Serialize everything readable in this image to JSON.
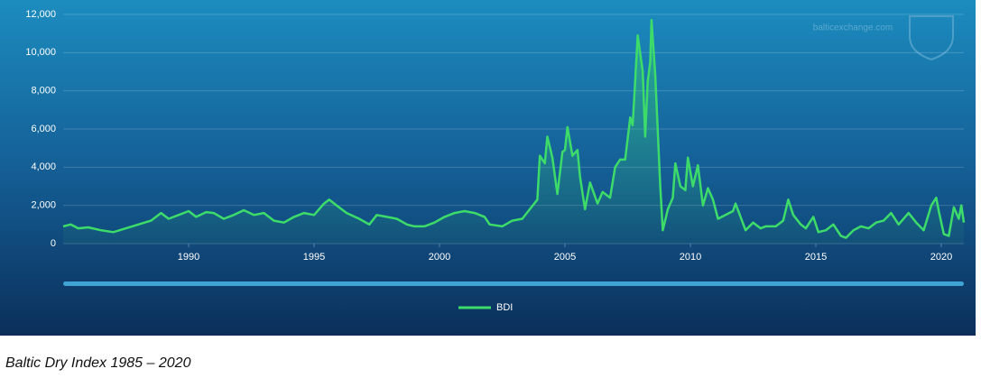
{
  "chart_data": {
    "type": "line",
    "watermark": "balticexchange.com",
    "x": [
      1985.0,
      1985.3,
      1985.6,
      1986.0,
      1986.5,
      1987.0,
      1987.5,
      1988.0,
      1988.5,
      1988.9,
      1989.2,
      1989.6,
      1990.0,
      1990.3,
      1990.7,
      1991.0,
      1991.4,
      1991.8,
      1992.2,
      1992.6,
      1993.0,
      1993.4,
      1993.8,
      1994.2,
      1994.6,
      1995.0,
      1995.4,
      1995.6,
      1995.9,
      1996.3,
      1996.8,
      1997.2,
      1997.5,
      1997.9,
      1998.3,
      1998.7,
      1999.0,
      1999.4,
      1999.8,
      2000.2,
      2000.6,
      2001.0,
      2001.4,
      2001.8,
      2002.0,
      2002.5,
      2002.9,
      2003.3,
      2003.6,
      2003.9,
      2004.0,
      2004.2,
      2004.3,
      2004.5,
      2004.7,
      2004.9,
      2005.0,
      2005.1,
      2005.3,
      2005.5,
      2005.6,
      2005.8,
      2006.0,
      2006.3,
      2006.5,
      2006.8,
      2007.0,
      2007.2,
      2007.4,
      2007.6,
      2007.7,
      2007.8,
      2007.9,
      2008.1,
      2008.2,
      2008.3,
      2008.4,
      2008.45,
      2008.6,
      2008.8,
      2008.9,
      2009.1,
      2009.3,
      2009.4,
      2009.6,
      2009.8,
      2009.9,
      2010.1,
      2010.3,
      2010.5,
      2010.7,
      2010.9,
      2011.1,
      2011.4,
      2011.7,
      2011.8,
      2012.0,
      2012.2,
      2012.5,
      2012.8,
      2013.0,
      2013.4,
      2013.7,
      2013.9,
      2014.1,
      2014.4,
      2014.6,
      2014.9,
      2015.1,
      2015.4,
      2015.7,
      2016.0,
      2016.2,
      2016.5,
      2016.8,
      2017.1,
      2017.4,
      2017.7,
      2018.0,
      2018.3,
      2018.7,
      2019.0,
      2019.3,
      2019.6,
      2019.8,
      2019.9,
      2020.1,
      2020.3,
      2020.5,
      2020.7,
      2020.8,
      2020.9
    ],
    "series": [
      {
        "name": "BDI",
        "color": "#3ddc6a",
        "values": [
          900,
          1000,
          800,
          850,
          700,
          600,
          800,
          1000,
          1200,
          1600,
          1300,
          1500,
          1700,
          1400,
          1650,
          1600,
          1300,
          1500,
          1750,
          1500,
          1600,
          1200,
          1100,
          1400,
          1600,
          1500,
          2100,
          2300,
          2000,
          1600,
          1300,
          1000,
          1500,
          1400,
          1300,
          1000,
          900,
          900,
          1100,
          1400,
          1600,
          1700,
          1600,
          1400,
          1000,
          900,
          1200,
          1300,
          1800,
          2300,
          4600,
          4200,
          5600,
          4500,
          2600,
          4800,
          4900,
          6100,
          4600,
          4900,
          3500,
          1800,
          3200,
          2100,
          2700,
          2400,
          4000,
          4400,
          4400,
          6600,
          6200,
          8500,
          10900,
          9000,
          5600,
          8500,
          9500,
          11700,
          8800,
          3000,
          700,
          1800,
          2400,
          4200,
          3000,
          2800,
          4500,
          3000,
          4100,
          2000,
          2900,
          2300,
          1300,
          1500,
          1700,
          2100,
          1400,
          700,
          1100,
          800,
          900,
          900,
          1200,
          2300,
          1500,
          1000,
          800,
          1400,
          600,
          700,
          1000,
          400,
          300,
          700,
          900,
          800,
          1100,
          1200,
          1600,
          1000,
          1600,
          1100,
          700,
          2000,
          2400,
          1700,
          500,
          400,
          1900,
          1300,
          2000,
          1100
        ]
      }
    ],
    "xlim": [
      1985,
      2020.9
    ],
    "xticks": [
      1990,
      1995,
      2000,
      2005,
      2010,
      2015,
      2020
    ],
    "ylim": [
      0,
      12000
    ],
    "yticks": [
      0,
      {
        "value": 2000,
        "label": "2,000"
      },
      {
        "value": 4000,
        "label": "4,000"
      },
      {
        "value": 6000,
        "label": "6,000"
      },
      {
        "value": 8000,
        "label": "8,000"
      },
      {
        "value": 10000,
        "label": "10,000"
      },
      {
        "value": 12000,
        "label": "12,000"
      }
    ],
    "grid": true,
    "legend": "bottom"
  },
  "caption": "Baltic Dry Index 1985 – 2020"
}
